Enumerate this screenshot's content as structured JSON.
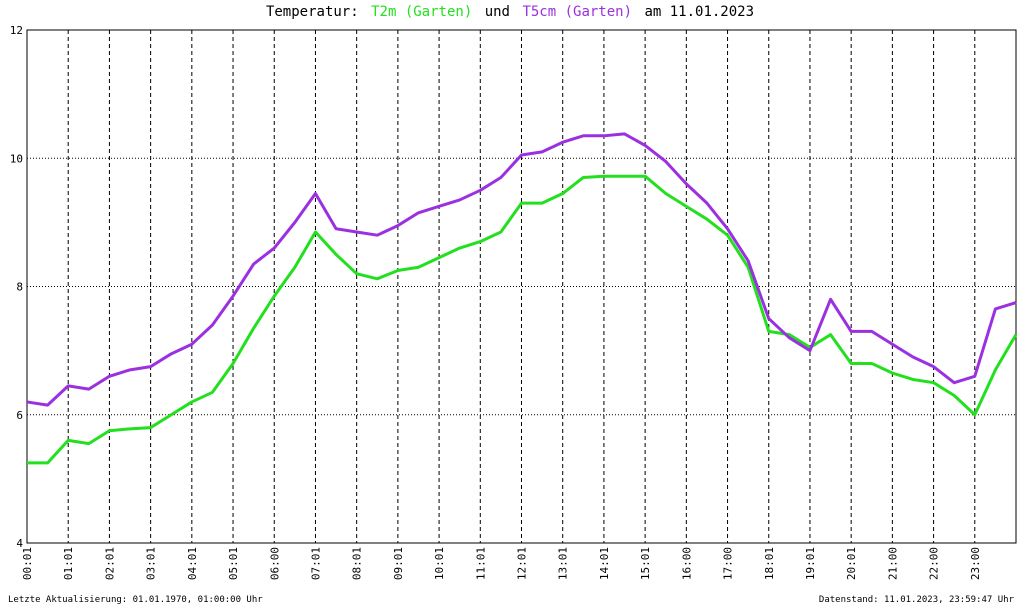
{
  "chart_data": {
    "type": "line",
    "title": "Temperatur:",
    "title_joiner": "und",
    "title_date": "am 11.01.2023",
    "footer_left": "Letzte Aktualisierung: 01.01.1970, 01:00:00 Uhr",
    "footer_right": "Datenstand: 11.01.2023, 23:59:47 Uhr",
    "x": [
      0,
      0.5,
      1,
      1.5,
      2,
      2.5,
      3,
      3.5,
      4,
      4.5,
      5,
      5.5,
      6,
      6.5,
      7,
      7.5,
      8,
      8.5,
      9,
      9.5,
      10,
      10.5,
      11,
      11.5,
      12,
      12.5,
      13,
      13.5,
      14,
      14.5,
      15,
      15.5,
      16,
      16.5,
      17,
      17.5,
      18,
      18.5,
      19,
      19.5,
      20,
      20.5,
      21,
      21.5,
      22,
      22.5,
      23,
      23.5,
      24
    ],
    "xlim": [
      0,
      24
    ],
    "xticks": [
      {
        "value": 0,
        "label": "00:01"
      },
      {
        "value": 1,
        "label": "01:01"
      },
      {
        "value": 2,
        "label": "02:01"
      },
      {
        "value": 3,
        "label": "03:01"
      },
      {
        "value": 4,
        "label": "04:01"
      },
      {
        "value": 5,
        "label": "05:01"
      },
      {
        "value": 6,
        "label": "06:00"
      },
      {
        "value": 7,
        "label": "07:01"
      },
      {
        "value": 8,
        "label": "08:01"
      },
      {
        "value": 9,
        "label": "09:01"
      },
      {
        "value": 10,
        "label": "10:01"
      },
      {
        "value": 11,
        "label": "11:01"
      },
      {
        "value": 12,
        "label": "12:01"
      },
      {
        "value": 13,
        "label": "13:01"
      },
      {
        "value": 14,
        "label": "14:01"
      },
      {
        "value": 15,
        "label": "15:01"
      },
      {
        "value": 16,
        "label": "16:00"
      },
      {
        "value": 17,
        "label": "17:00"
      },
      {
        "value": 18,
        "label": "18:01"
      },
      {
        "value": 19,
        "label": "19:01"
      },
      {
        "value": 20,
        "label": "20:01"
      },
      {
        "value": 21,
        "label": "21:00"
      },
      {
        "value": 22,
        "label": "22:00"
      },
      {
        "value": 23,
        "label": "23:00"
      }
    ],
    "ylim": [
      4,
      12
    ],
    "yticks": [
      4,
      6,
      8,
      10,
      12
    ],
    "grid": true,
    "series": [
      {
        "name": "T2m (Garten)",
        "color": "#22e01e",
        "values": [
          5.25,
          5.25,
          5.6,
          5.55,
          5.75,
          5.78,
          5.8,
          6.0,
          6.2,
          6.35,
          6.8,
          7.35,
          7.85,
          8.3,
          8.85,
          8.5,
          8.2,
          8.12,
          8.25,
          8.3,
          8.45,
          8.6,
          8.7,
          8.85,
          9.3,
          9.3,
          9.45,
          9.7,
          9.72,
          9.72,
          9.72,
          9.45,
          9.25,
          9.05,
          8.8,
          8.3,
          7.3,
          7.25,
          7.05,
          7.25,
          6.8,
          6.8,
          6.65,
          6.55,
          6.5,
          6.3,
          6.0,
          6.7,
          7.25
        ]
      },
      {
        "name": "T5cm (Garten)",
        "color": "#9b30e0",
        "values": [
          6.2,
          6.15,
          6.45,
          6.4,
          6.6,
          6.7,
          6.75,
          6.95,
          7.1,
          7.4,
          7.85,
          8.35,
          8.6,
          9.0,
          9.45,
          8.9,
          8.85,
          8.8,
          8.95,
          9.15,
          9.25,
          9.35,
          9.5,
          9.7,
          10.05,
          10.1,
          10.25,
          10.35,
          10.35,
          10.38,
          10.2,
          9.95,
          9.6,
          9.3,
          8.9,
          8.4,
          7.5,
          7.2,
          7.0,
          7.8,
          7.3,
          7.3,
          7.1,
          6.9,
          6.75,
          6.5,
          6.6,
          7.65,
          7.75
        ]
      }
    ]
  }
}
